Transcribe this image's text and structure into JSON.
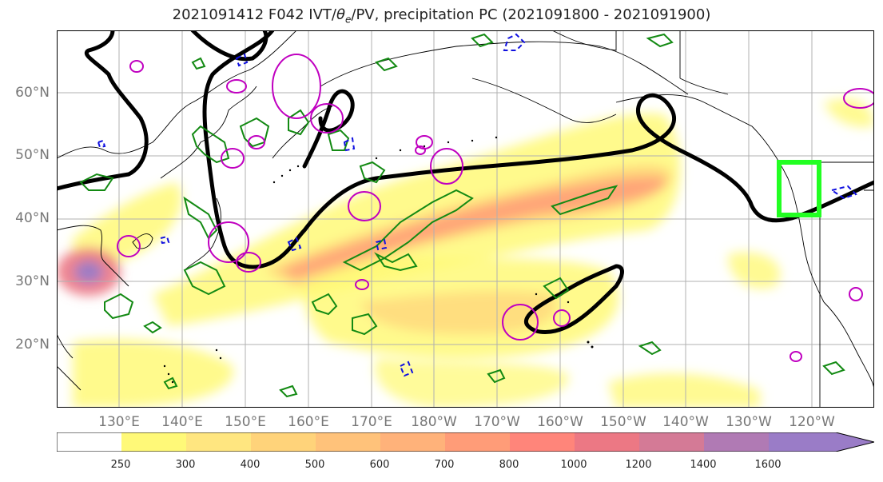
{
  "title": {
    "prefix": "2021091412 F042 IVT/",
    "theta": "θ",
    "theta_sub": "e",
    "suffix": "/PV, precipitation PC (2021091800 - 2021091900)"
  },
  "lat_labels": [
    "60°N",
    "50°N",
    "40°N",
    "30°N",
    "20°N"
  ],
  "lon_labels": [
    "130°E",
    "140°E",
    "150°E",
    "160°E",
    "170°E",
    "180°W",
    "170°W",
    "160°W",
    "150°W",
    "140°W",
    "130°W",
    "120°W"
  ],
  "colorbar": {
    "ticks": [
      "250",
      "300",
      "400",
      "500",
      "600",
      "700",
      "800",
      "1000",
      "1200",
      "1400",
      "1600"
    ],
    "colors": [
      "#ffffff",
      "#fff978",
      "#ffe680",
      "#ffd37a",
      "#ffc27a",
      "#ffb27a",
      "#ff9c78",
      "#ff857a",
      "#ec7884",
      "#d47a96",
      "#b07ab4",
      "#9a7cc7"
    ]
  },
  "colors": {
    "ivt_contour": "#000000",
    "green_contour": "#138a13",
    "magenta_contour": "#c000c0",
    "blue_contour": "#1010e0",
    "target_box": "#22ff22",
    "grid": "#b0b0b0",
    "coast": "#000000"
  }
}
